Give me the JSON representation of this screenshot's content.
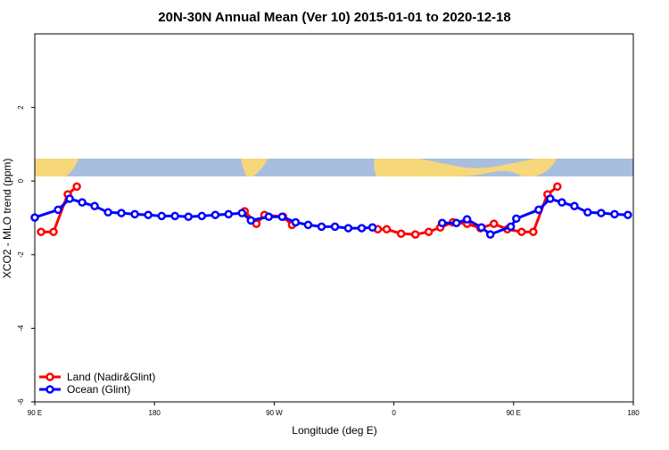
{
  "chart_data": {
    "type": "line",
    "title": "20N-30N Annual Mean (Ver 10)   2015-01-01 to 2020-12-18",
    "x_label": "Longitude (deg E)",
    "y_label": "XCO2 - MLO trend (ppm)",
    "xlim": [
      90,
      540
    ],
    "xticks": [
      {
        "value": 90,
        "label": "90 E"
      },
      180,
      {
        "value": 270,
        "label": "90 W"
      },
      {
        "value": 360,
        "label": "0"
      },
      {
        "value": 450,
        "label": "90 E"
      },
      {
        "value": 540,
        "label": "180"
      }
    ],
    "ylim": [
      -6,
      4
    ],
    "yticks": [
      -6,
      -4,
      -2,
      0,
      2
    ],
    "grid": false,
    "legend": "bottom-left",
    "series": [
      {
        "name": "Land (Nadir&Glint)",
        "color": "#ff0000",
        "x": [
          94.7,
          104.1,
          114.8,
          121.6,
          null,
          247.8,
          256.6,
          262.6,
          276.7,
          283.4,
          null,
          347.9,
          354.6,
          365.4,
          376.1,
          386.2,
          394.9,
          404.3,
          415.0,
          425.1,
          435.2,
          445.3,
          456.0,
          464.8,
          475.5,
          482.9
        ],
        "values": [
          -1.38,
          -1.38,
          -0.36,
          -0.15,
          null,
          -0.82,
          -1.16,
          -0.92,
          -0.97,
          -1.19,
          null,
          -1.31,
          -1.31,
          -1.43,
          -1.45,
          -1.38,
          -1.26,
          -1.12,
          -1.16,
          -1.28,
          -1.16,
          -1.31,
          -1.38,
          -1.38,
          -0.36,
          -0.15
        ]
      },
      {
        "name": "Ocean (Glint)",
        "color": "#0000ff",
        "x": [
          90,
          107.5,
          116.2,
          125.6,
          135.0,
          145.1,
          155.1,
          165.2,
          175.3,
          185.4,
          195.4,
          205.5,
          215.6,
          225.7,
          235.7,
          245.8,
          252.5,
          265.9,
          276.0,
          286.1,
          295.5,
          305.6,
          315.7,
          325.7,
          335.8,
          343.9,
          null,
          396.3,
          407.0,
          415.0,
          425.8,
          432.5,
          447.9,
          452.0,
          468.8,
          477.5,
          486.3,
          495.7,
          505.7,
          515.8,
          525.9,
          535.9
        ],
        "values": [
          -0.99,
          -0.78,
          -0.48,
          -0.58,
          -0.68,
          -0.85,
          -0.87,
          -0.9,
          -0.92,
          -0.95,
          -0.95,
          -0.97,
          -0.95,
          -0.92,
          -0.9,
          -0.87,
          -1.07,
          -0.97,
          -0.97,
          -1.12,
          -1.19,
          -1.24,
          -1.24,
          -1.28,
          -1.28,
          -1.26,
          null,
          -1.14,
          -1.14,
          -1.04,
          -1.26,
          -1.45,
          -1.24,
          -1.02,
          -0.78,
          -0.48,
          -0.58,
          -0.68,
          -0.85,
          -0.87,
          -0.9,
          -0.92
        ]
      }
    ]
  }
}
